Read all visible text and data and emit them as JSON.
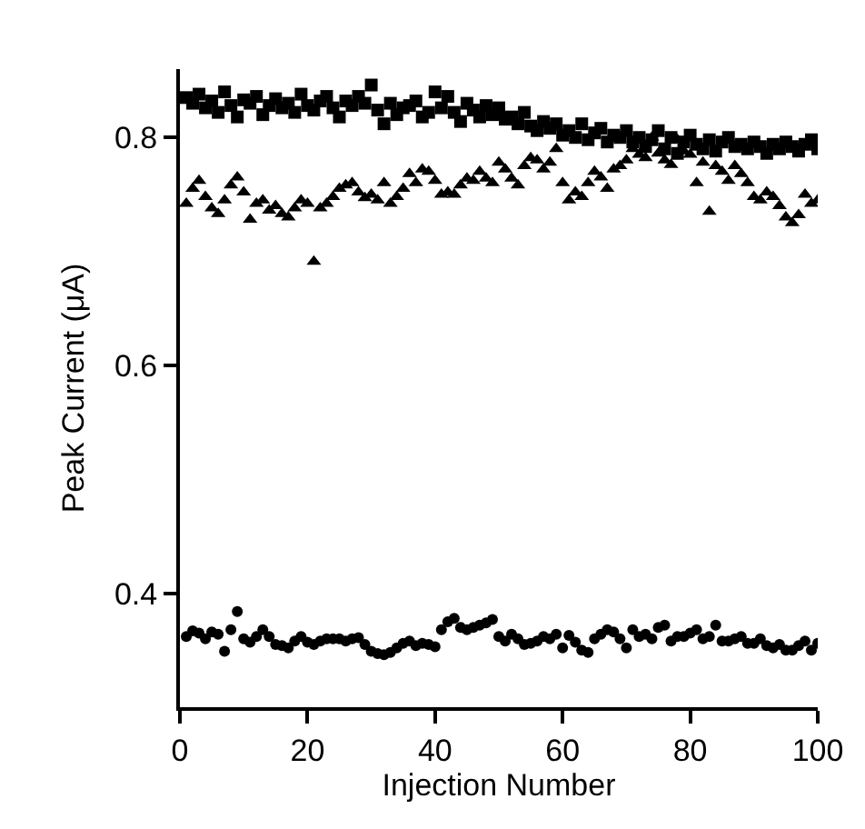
{
  "chart_data": {
    "type": "scatter",
    "xlabel": "Injection Number",
    "ylabel": "Peak Current (μA)",
    "xlim": [
      0,
      100
    ],
    "ylim": [
      0.3,
      0.86
    ],
    "xticks": [
      0,
      20,
      40,
      60,
      80,
      100
    ],
    "yticks": [
      0.4,
      0.6,
      0.8
    ],
    "x": [
      1,
      2,
      3,
      4,
      5,
      6,
      7,
      8,
      9,
      10,
      11,
      12,
      13,
      14,
      15,
      16,
      17,
      18,
      19,
      20,
      21,
      22,
      23,
      24,
      25,
      26,
      27,
      28,
      29,
      30,
      31,
      32,
      33,
      34,
      35,
      36,
      37,
      38,
      39,
      40,
      41,
      42,
      43,
      44,
      45,
      46,
      47,
      48,
      49,
      50,
      51,
      52,
      53,
      54,
      55,
      56,
      57,
      58,
      59,
      60,
      61,
      62,
      63,
      64,
      65,
      66,
      67,
      68,
      69,
      70,
      71,
      72,
      73,
      74,
      75,
      76,
      77,
      78,
      79,
      80,
      81,
      82,
      83,
      84,
      85,
      86,
      87,
      88,
      89,
      90,
      91,
      92,
      93,
      94,
      95,
      96,
      97,
      98,
      99,
      100
    ],
    "series": [
      {
        "color": "#000000",
        "marker": "square",
        "values": [
          0.835,
          0.83,
          0.838,
          0.826,
          0.832,
          0.822,
          0.84,
          0.828,
          0.818,
          0.833,
          0.83,
          0.836,
          0.82,
          0.828,
          0.834,
          0.826,
          0.83,
          0.822,
          0.838,
          0.828,
          0.824,
          0.832,
          0.836,
          0.826,
          0.818,
          0.832,
          0.828,
          0.836,
          0.83,
          0.846,
          0.824,
          0.812,
          0.83,
          0.82,
          0.826,
          0.828,
          0.832,
          0.818,
          0.822,
          0.84,
          0.826,
          0.836,
          0.822,
          0.814,
          0.83,
          0.824,
          0.818,
          0.828,
          0.82,
          0.826,
          0.816,
          0.818,
          0.812,
          0.822,
          0.81,
          0.806,
          0.814,
          0.808,
          0.812,
          0.802,
          0.806,
          0.8,
          0.812,
          0.798,
          0.804,
          0.808,
          0.796,
          0.802,
          0.8,
          0.806,
          0.796,
          0.8,
          0.792,
          0.798,
          0.806,
          0.79,
          0.8,
          0.786,
          0.796,
          0.802,
          0.794,
          0.79,
          0.798,
          0.788,
          0.796,
          0.8,
          0.792,
          0.794,
          0.79,
          0.796,
          0.792,
          0.786,
          0.794,
          0.79,
          0.796,
          0.792,
          0.788,
          0.794,
          0.798,
          0.79
        ]
      },
      {
        "color": "#000000",
        "marker": "triangle",
        "values": [
          0.742,
          0.755,
          0.762,
          0.748,
          0.738,
          0.733,
          0.745,
          0.758,
          0.765,
          0.752,
          0.728,
          0.742,
          0.745,
          0.736,
          0.74,
          0.733,
          0.73,
          0.738,
          0.745,
          0.742,
          0.691,
          0.738,
          0.742,
          0.748,
          0.755,
          0.758,
          0.76,
          0.752,
          0.747,
          0.75,
          0.745,
          0.76,
          0.742,
          0.748,
          0.755,
          0.768,
          0.76,
          0.772,
          0.77,
          0.762,
          0.75,
          0.752,
          0.75,
          0.758,
          0.764,
          0.762,
          0.77,
          0.764,
          0.76,
          0.778,
          0.772,
          0.764,
          0.758,
          0.775,
          0.782,
          0.78,
          0.772,
          0.778,
          0.79,
          0.76,
          0.745,
          0.752,
          0.748,
          0.76,
          0.77,
          0.765,
          0.755,
          0.772,
          0.775,
          0.78,
          0.79,
          0.785,
          0.782,
          0.8,
          0.786,
          0.78,
          0.776,
          0.798,
          0.788,
          0.785,
          0.76,
          0.778,
          0.735,
          0.775,
          0.77,
          0.762,
          0.775,
          0.768,
          0.76,
          0.748,
          0.745,
          0.752,
          0.748,
          0.74,
          0.73,
          0.725,
          0.732,
          0.75,
          0.742,
          0.745
        ]
      },
      {
        "color": "#000000",
        "marker": "circle",
        "values": [
          0.362,
          0.367,
          0.365,
          0.36,
          0.366,
          0.364,
          0.349,
          0.368,
          0.384,
          0.36,
          0.357,
          0.362,
          0.368,
          0.362,
          0.355,
          0.354,
          0.352,
          0.358,
          0.362,
          0.357,
          0.355,
          0.358,
          0.36,
          0.36,
          0.36,
          0.358,
          0.36,
          0.361,
          0.355,
          0.349,
          0.347,
          0.346,
          0.348,
          0.352,
          0.356,
          0.358,
          0.354,
          0.356,
          0.355,
          0.353,
          0.368,
          0.375,
          0.378,
          0.37,
          0.368,
          0.37,
          0.372,
          0.374,
          0.377,
          0.362,
          0.358,
          0.364,
          0.36,
          0.355,
          0.356,
          0.358,
          0.362,
          0.36,
          0.364,
          0.352,
          0.363,
          0.357,
          0.35,
          0.348,
          0.36,
          0.364,
          0.368,
          0.366,
          0.36,
          0.352,
          0.368,
          0.362,
          0.364,
          0.36,
          0.37,
          0.372,
          0.358,
          0.362,
          0.362,
          0.365,
          0.368,
          0.36,
          0.362,
          0.372,
          0.358,
          0.358,
          0.36,
          0.362,
          0.356,
          0.356,
          0.36,
          0.354,
          0.352,
          0.355,
          0.35,
          0.35,
          0.354,
          0.358,
          0.35,
          0.356
        ]
      }
    ]
  }
}
